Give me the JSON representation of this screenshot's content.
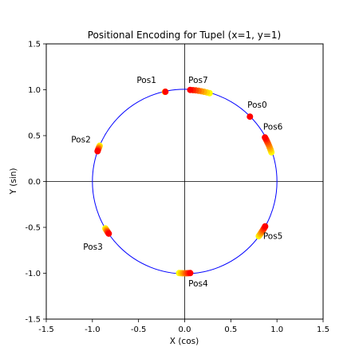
{
  "chart_data": {
    "type": "scatter",
    "title": "Positional Encoding for Tupel (x=1, y=1)",
    "xlabel": "X (cos)",
    "ylabel": "Y (sin)",
    "xlim": [
      -1.5,
      1.5
    ],
    "ylim": [
      -1.5,
      1.5
    ],
    "xticks": [
      "-1.5",
      "-1.0",
      "-0.5",
      "0.0",
      "0.5",
      "1.0",
      "1.5"
    ],
    "yticks": [
      "-1.5",
      "-1.0",
      "-0.5",
      "0.0",
      "0.5",
      "1.0",
      "1.5"
    ],
    "grid": false,
    "circle": {
      "center": [
        0,
        0
      ],
      "radius": 1.0,
      "color": "#0000ff"
    },
    "reference_lines": {
      "x": 0,
      "y": 0
    },
    "colormap": [
      "#ff0000",
      "#ffff00"
    ],
    "positions": [
      {
        "label": "Pos0",
        "label_xy": [
          0.68,
          0.84
        ],
        "points": [
          [
            0.707,
            0.707
          ]
        ]
      },
      {
        "label": "Pos1",
        "label_xy": [
          -0.52,
          1.11
        ],
        "points": [
          [
            -0.209,
            0.978
          ],
          [
            -0.214,
            0.977
          ]
        ]
      },
      {
        "label": "Pos2",
        "label_xy": [
          -1.23,
          0.46
        ],
        "points": [
          [
            -0.944,
            0.33
          ],
          [
            -0.94,
            0.342
          ],
          [
            -0.935,
            0.356
          ],
          [
            -0.931,
            0.366
          ],
          [
            -0.925,
            0.38
          ],
          [
            -0.921,
            0.39
          ]
        ]
      },
      {
        "label": "Pos3",
        "label_xy": [
          -1.1,
          -0.71
        ],
        "points": [
          [
            -0.823,
            -0.568
          ],
          [
            -0.83,
            -0.558
          ],
          [
            -0.836,
            -0.549
          ],
          [
            -0.842,
            -0.54
          ],
          [
            -0.848,
            -0.53
          ],
          [
            -0.854,
            -0.52
          ],
          [
            -0.86,
            -0.511
          ]
        ]
      },
      {
        "label": "Pos4",
        "label_xy": [
          0.04,
          -1.11
        ],
        "points": [
          [
            0.06,
            -0.998
          ],
          [
            0.04,
            -0.999
          ],
          [
            0.02,
            -1.0
          ],
          [
            0.0,
            -1.0
          ],
          [
            -0.02,
            -1.0
          ],
          [
            -0.04,
            -0.999
          ],
          [
            -0.06,
            -0.998
          ]
        ]
      },
      {
        "label": "Pos5",
        "label_xy": [
          0.85,
          -0.59
        ],
        "points": [
          [
            0.872,
            -0.489
          ],
          [
            0.865,
            -0.502
          ],
          [
            0.858,
            -0.514
          ],
          [
            0.851,
            -0.526
          ],
          [
            0.843,
            -0.538
          ],
          [
            0.835,
            -0.55
          ],
          [
            0.827,
            -0.562
          ],
          [
            0.819,
            -0.574
          ],
          [
            0.811,
            -0.585
          ],
          [
            0.803,
            -0.596
          ]
        ]
      },
      {
        "label": "Pos6",
        "label_xy": [
          0.85,
          0.6
        ],
        "points": [
          [
            0.87,
            0.48
          ],
          [
            0.88,
            0.462
          ],
          [
            0.889,
            0.444
          ],
          [
            0.897,
            0.426
          ],
          [
            0.906,
            0.408
          ],
          [
            0.914,
            0.39
          ],
          [
            0.921,
            0.372
          ],
          [
            0.928,
            0.354
          ],
          [
            0.934,
            0.336
          ],
          [
            0.94,
            0.318
          ]
        ]
      },
      {
        "label": "Pos7",
        "label_xy": [
          0.04,
          1.11
        ],
        "points": [
          [
            0.06,
            0.998
          ],
          [
            0.09,
            0.996
          ],
          [
            0.12,
            0.993
          ],
          [
            0.15,
            0.989
          ],
          [
            0.18,
            0.984
          ],
          [
            0.21,
            0.978
          ],
          [
            0.24,
            0.971
          ],
          [
            0.27,
            0.963
          ]
        ]
      }
    ]
  }
}
